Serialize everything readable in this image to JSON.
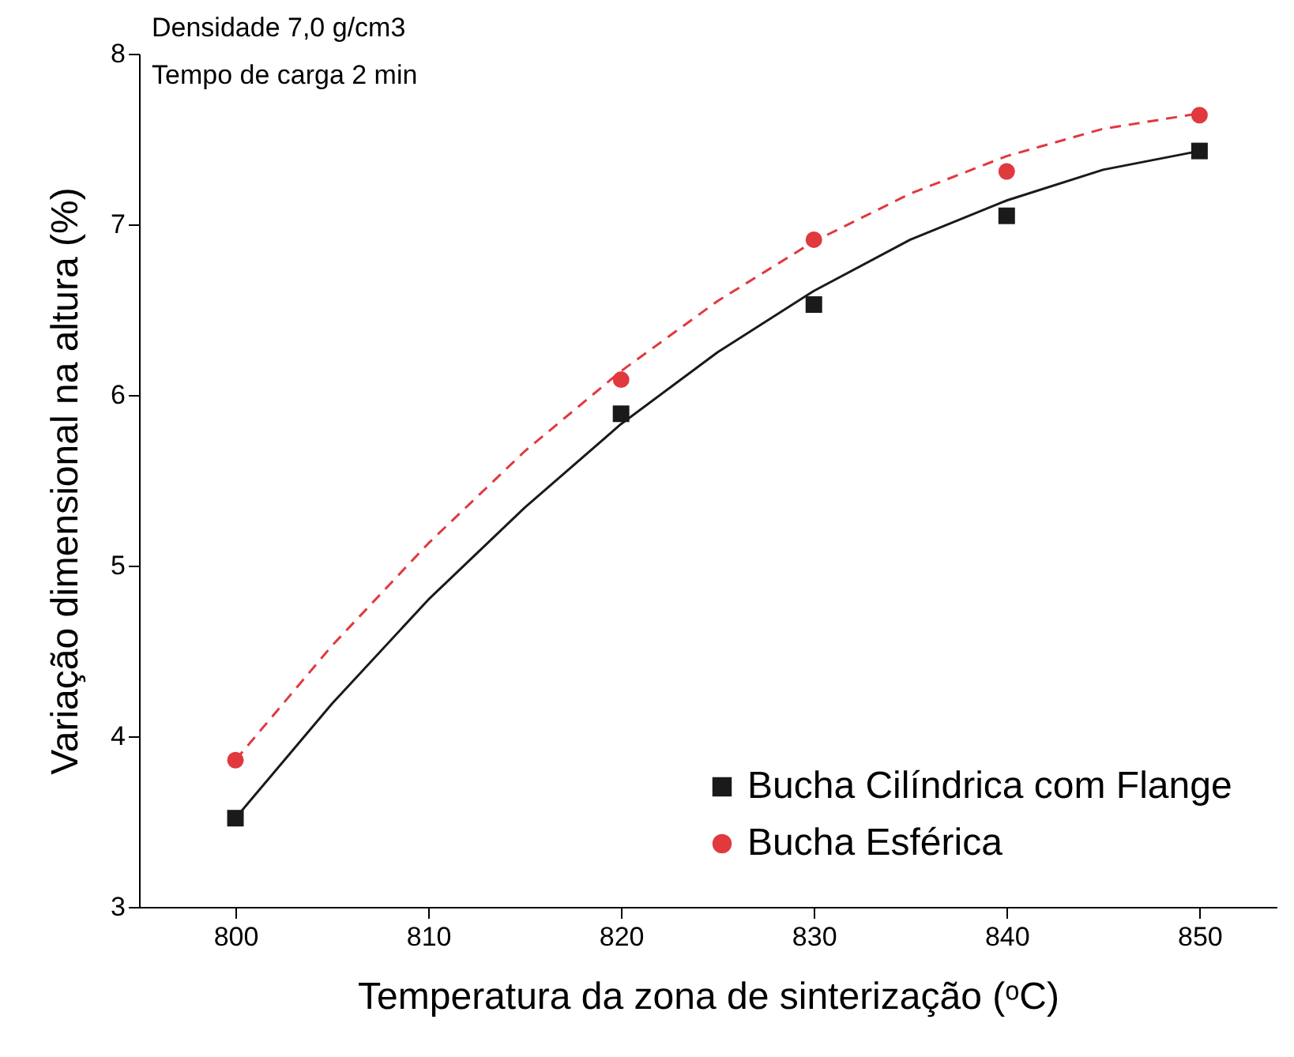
{
  "chart_data": {
    "type": "scatter",
    "xlabel": "Temperatura da zona de sinterização (ᵒC)",
    "ylabel": "Variação dimensional na altura (%)",
    "annotations": [
      "Densidade 7,0 g/cm3",
      "Tempo de carga 2 min"
    ],
    "x": [
      800,
      820,
      830,
      840,
      850
    ],
    "xlim": [
      795,
      854
    ],
    "xticks": [
      800,
      810,
      820,
      830,
      840,
      850
    ],
    "ylim": [
      3,
      8
    ],
    "yticks": [
      3,
      4,
      5,
      6,
      7,
      8
    ],
    "legend": "bottom right",
    "series": [
      {
        "name": "Bucha Cilíndrica com Flange",
        "type": "scatter",
        "marker": "square",
        "color": "#1a1a1a",
        "values": [
          3.52,
          5.89,
          6.53,
          7.05,
          7.43
        ]
      },
      {
        "name": "Bucha Esférica",
        "type": "scatter",
        "marker": "circle",
        "color": "#e0393e",
        "values": [
          3.86,
          6.09,
          6.91,
          7.31,
          7.64
        ]
      },
      {
        "type": "line",
        "color": "#1a1a1a",
        "line_style": "solid",
        "x": [
          800,
          805,
          810,
          815,
          820,
          825,
          830,
          835,
          840,
          845,
          850
        ],
        "values": [
          3.52,
          4.19,
          4.8,
          5.34,
          5.83,
          6.25,
          6.61,
          6.91,
          7.14,
          7.32,
          7.43
        ]
      },
      {
        "type": "line",
        "color": "#e0393e",
        "line_style": "dashed",
        "x": [
          800,
          805,
          810,
          815,
          820,
          825,
          830,
          835,
          840,
          845,
          850
        ],
        "values": [
          3.86,
          4.53,
          5.13,
          5.67,
          6.14,
          6.55,
          6.9,
          7.18,
          7.4,
          7.56,
          7.65
        ]
      }
    ]
  }
}
